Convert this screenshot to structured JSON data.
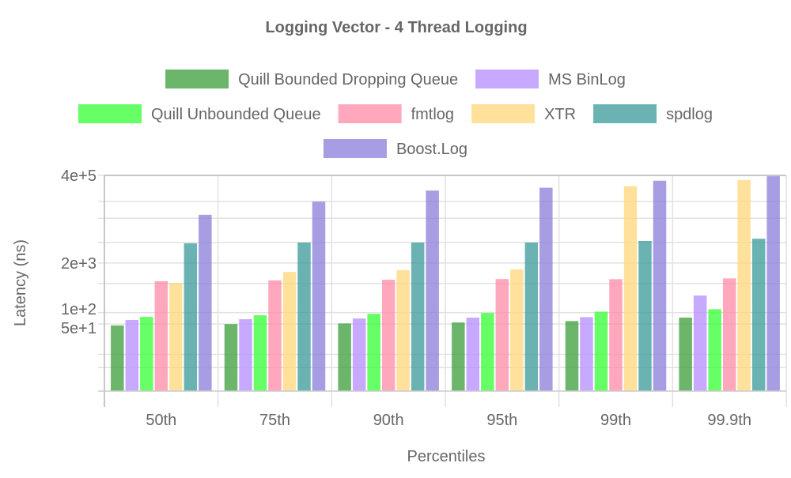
{
  "chart_data": {
    "type": "bar",
    "title": "Logging Vector - 4 Thread Logging",
    "xlabel": "Percentiles",
    "ylabel": "Latency (ns)",
    "yscale": "log",
    "ylim": [
      1,
      400000
    ],
    "yticks": [
      {
        "value": 400000,
        "label": "4e+5"
      },
      {
        "value": 2000,
        "label": "2e+3"
      },
      {
        "value": 100,
        "label": "1e+2"
      },
      {
        "value": 50,
        "label": "5e+1"
      }
    ],
    "grid_values": [
      400000,
      83000,
      30000,
      7000,
      2000,
      580,
      100,
      50,
      8,
      3.6
    ],
    "grid": true,
    "legend_placement": "top",
    "categories": [
      "50th",
      "75th",
      "90th",
      "95th",
      "99th",
      "99.9th"
    ],
    "series": [
      {
        "name": "Quill Bounded Dropping Queue",
        "color": "#3a9e3a",
        "values": [
          46,
          50,
          52,
          55,
          60,
          74
        ]
      },
      {
        "name": "MS BinLog",
        "color": "#b48cff",
        "values": [
          64,
          67,
          70,
          74,
          76,
          281
        ]
      },
      {
        "name": "Quill Unbounded Queue",
        "color": "#33ff33",
        "values": [
          77,
          85,
          93,
          98,
          106,
          123
        ]
      },
      {
        "name": "fmtlog",
        "color": "#ff8aa5",
        "values": [
          665,
          700,
          730,
          760,
          755,
          791
        ]
      },
      {
        "name": "XTR",
        "color": "#ffd77a",
        "values": [
          600,
          1170,
          1300,
          1360,
          210000,
          300000
        ]
      },
      {
        "name": "spdlog",
        "color": "#3a9a9a",
        "values": [
          6600,
          6900,
          6900,
          6900,
          7600,
          8700
        ]
      },
      {
        "name": "Boost.Log",
        "color": "#8a7cd8",
        "values": [
          37000,
          82000,
          160000,
          190000,
          290000,
          380000
        ]
      }
    ]
  }
}
